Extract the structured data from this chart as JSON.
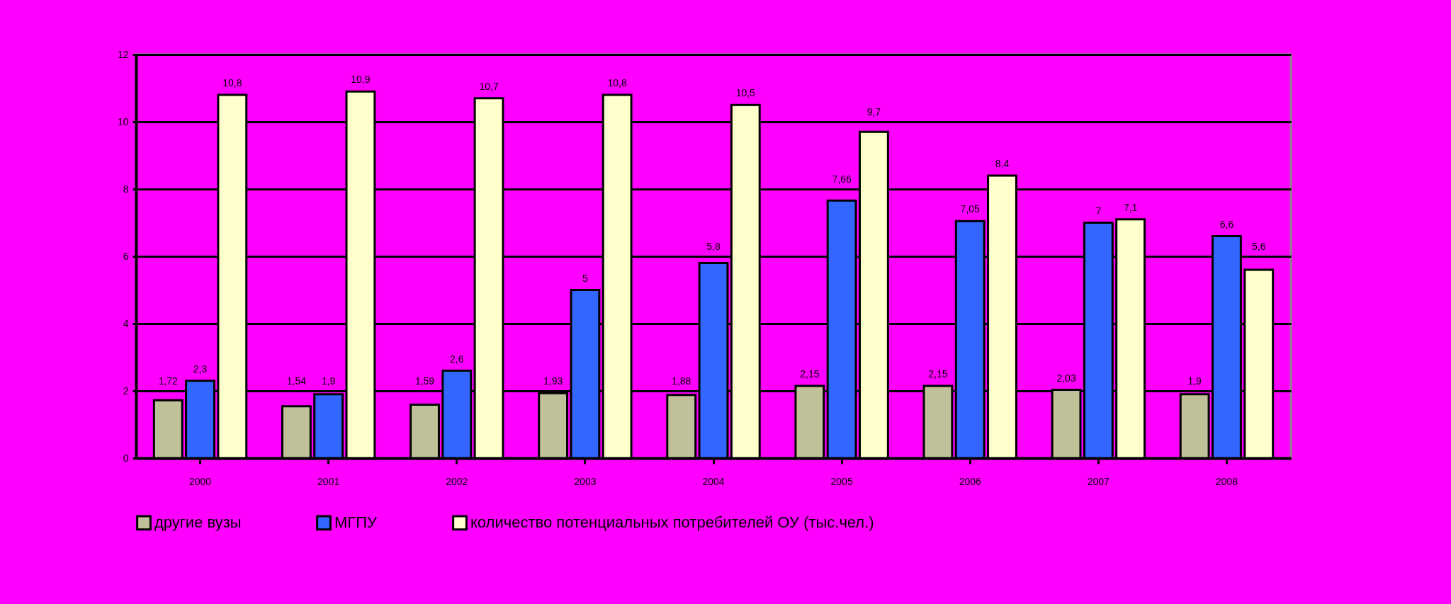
{
  "chart_data": {
    "type": "bar",
    "categories": [
      "2000",
      "2001",
      "2002",
      "2003",
      "2004",
      "2005",
      "2006",
      "2007",
      "2008"
    ],
    "series": [
      {
        "name": "другие вузы",
        "color": "#c0c099",
        "values": [
          1.72,
          1.54,
          1.59,
          1.93,
          1.88,
          2.15,
          2.15,
          2.03,
          1.9
        ],
        "value_labels": [
          "1,72",
          "1,54",
          "1,59",
          "1,93",
          "1,88",
          "2,15",
          "2,15",
          "2,03",
          "1,9"
        ]
      },
      {
        "name": "МГПУ",
        "color": "#3366ff",
        "values": [
          2.3,
          1.9,
          2.6,
          5,
          5.8,
          7.66,
          7.05,
          7,
          6.6
        ],
        "value_labels": [
          "2,3",
          "1,9",
          "2,6",
          "5",
          "5,8",
          "7,66",
          "7,05",
          "7",
          "6,6"
        ]
      },
      {
        "name": "количество потенциальных потребителей ОУ (тыс.чел.)",
        "color": "#ffffcc",
        "values": [
          10.8,
          10.9,
          10.7,
          10.8,
          10.5,
          9.7,
          8.4,
          7.1,
          5.6
        ],
        "value_labels": [
          "10,8",
          "10,9",
          "10,7",
          "10,8",
          "10,5",
          "9,7",
          "8,4",
          "7,1",
          "5,6"
        ]
      }
    ],
    "ylim": [
      0,
      12
    ],
    "yticks": [
      0,
      2,
      4,
      6,
      8,
      10,
      12
    ],
    "grid": "y",
    "legend": "bottom"
  }
}
